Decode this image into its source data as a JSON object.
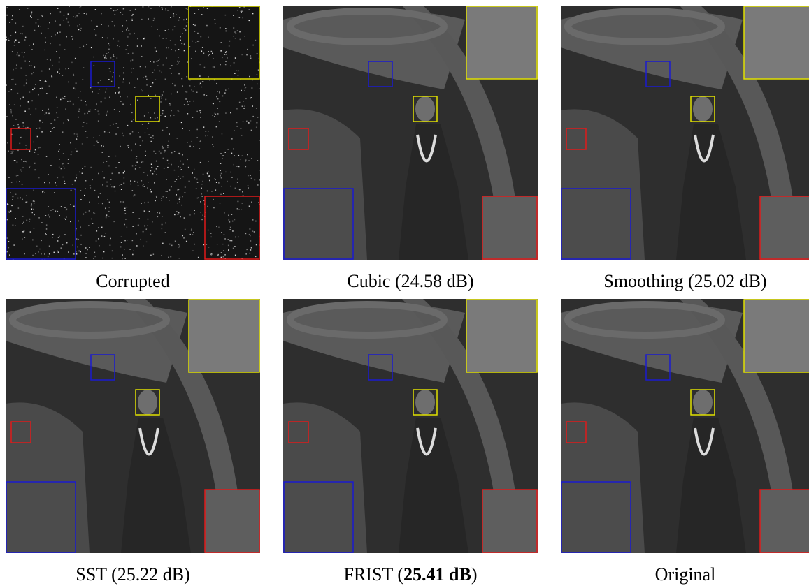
{
  "panels": [
    {
      "caption": [
        {
          "text": "Corrupted"
        }
      ],
      "corrupted": true
    },
    {
      "caption": [
        {
          "text": "Cubic (24.58 dB)"
        }
      ]
    },
    {
      "caption": [
        {
          "text": "Smoothing (25.02 dB)"
        }
      ]
    },
    {
      "caption": [
        {
          "text": "SST (25.22 dB)"
        }
      ]
    },
    {
      "caption": [
        {
          "text": "FRIST ("
        },
        {
          "text": "25.41 dB",
          "bold": true
        },
        {
          "text": ")"
        }
      ]
    },
    {
      "caption": [
        {
          "text": "Original"
        }
      ]
    }
  ]
}
